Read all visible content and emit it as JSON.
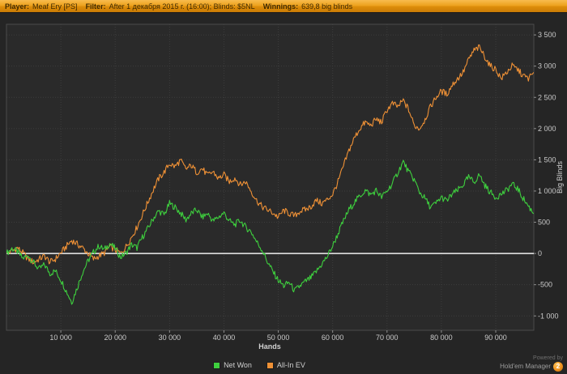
{
  "header": {
    "player_label": "Player:",
    "player_value": "Meaf Ery [PS]",
    "filter_label": "Filter:",
    "filter_value": "After 1 декабря 2015 г. (16:00); Blinds: $5NL",
    "winnings_label": "Winnings:",
    "winnings_value": "639,8 big blinds"
  },
  "chart_data": {
    "type": "line",
    "title": "",
    "xlabel": "Hands",
    "ylabel": "Big Blinds",
    "xlim": [
      0,
      97000
    ],
    "ylim": [
      -1230,
      3670
    ],
    "grid": "dotted",
    "zero_line_color": "#f0f0f0",
    "x_tick_values": [
      10000,
      20000,
      30000,
      40000,
      50000,
      60000,
      70000,
      80000,
      90000
    ],
    "x_tick_labels": [
      "10 000",
      "20 000",
      "30 000",
      "40 000",
      "50 000",
      "60 000",
      "70 000",
      "80 000",
      "90 000"
    ],
    "y_tick_values": [
      3500,
      3000,
      2500,
      2000,
      1500,
      1000,
      500,
      0,
      -500,
      -1000
    ],
    "y_tick_labels": [
      "3 500",
      "3 000",
      "2 500",
      "2 000",
      "1 500",
      "1 000",
      "500",
      "0",
      "-500",
      "-1 000"
    ],
    "x": [
      0,
      1000,
      2000,
      3000,
      4000,
      5000,
      6000,
      7000,
      8000,
      9000,
      10000,
      11000,
      12000,
      13000,
      14000,
      15000,
      16000,
      17000,
      18000,
      19000,
      20000,
      21000,
      22000,
      23000,
      24000,
      25000,
      26000,
      27000,
      28000,
      29000,
      30000,
      31000,
      32000,
      33000,
      34000,
      35000,
      36000,
      37000,
      38000,
      39000,
      40000,
      41000,
      42000,
      43000,
      44000,
      45000,
      46000,
      47000,
      48000,
      49000,
      50000,
      51000,
      52000,
      53000,
      54000,
      55000,
      56000,
      57000,
      58000,
      59000,
      60000,
      61000,
      62000,
      63000,
      64000,
      65000,
      66000,
      67000,
      68000,
      69000,
      70000,
      71000,
      72000,
      73000,
      74000,
      75000,
      76000,
      77000,
      78000,
      79000,
      80000,
      81000,
      82000,
      83000,
      84000,
      85000,
      86000,
      87000,
      88000,
      89000,
      90000,
      91000,
      92000,
      93000,
      94000,
      95000,
      96000,
      97000
    ],
    "series": [
      {
        "name": "Net Won",
        "color": "#3ecf3e",
        "values": [
          0,
          80,
          30,
          -80,
          -30,
          -150,
          -250,
          -180,
          -320,
          -280,
          -420,
          -600,
          -780,
          -550,
          -300,
          -120,
          20,
          120,
          60,
          160,
          80,
          -60,
          10,
          140,
          90,
          260,
          400,
          560,
          680,
          620,
          800,
          740,
          650,
          540,
          640,
          700,
          580,
          640,
          520,
          580,
          650,
          520,
          460,
          530,
          420,
          350,
          190,
          60,
          -130,
          -290,
          -430,
          -520,
          -460,
          -600,
          -520,
          -450,
          -390,
          -290,
          -170,
          -50,
          120,
          320,
          520,
          700,
          820,
          920,
          1010,
          940,
          1010,
          900,
          1000,
          1120,
          1300,
          1470,
          1300,
          1180,
          980,
          880,
          740,
          800,
          900,
          840,
          950,
          1010,
          1100,
          1220,
          1140,
          1260,
          1090,
          980,
          900,
          950,
          1010,
          1110,
          1040,
          890,
          760,
          640
        ]
      },
      {
        "name": "All-In EV",
        "color": "#ef9136",
        "values": [
          0,
          40,
          90,
          10,
          -90,
          -140,
          -90,
          -40,
          -140,
          -90,
          10,
          110,
          210,
          150,
          90,
          0,
          -90,
          -40,
          10,
          110,
          60,
          0,
          110,
          260,
          420,
          620,
          820,
          1020,
          1200,
          1300,
          1440,
          1390,
          1490,
          1350,
          1410,
          1300,
          1360,
          1250,
          1310,
          1200,
          1260,
          1150,
          1210,
          1100,
          1150,
          1000,
          850,
          750,
          700,
          650,
          580,
          690,
          640,
          600,
          680,
          700,
          750,
          850,
          800,
          860,
          950,
          1150,
          1400,
          1650,
          1850,
          2000,
          2100,
          2050,
          2150,
          2100,
          2300,
          2400,
          2350,
          2450,
          2300,
          2050,
          2000,
          2150,
          2350,
          2500,
          2600,
          2550,
          2700,
          2800,
          2900,
          3100,
          3250,
          3300,
          3150,
          3000,
          2950,
          2800,
          2900,
          3000,
          2950,
          2850,
          2800,
          2900
        ]
      }
    ]
  },
  "legend": [
    {
      "label": "Net Won",
      "color": "#3ecf3e"
    },
    {
      "label": "All-In EV",
      "color": "#ef9136"
    }
  ],
  "footer": {
    "powered_by": "Powered by",
    "brand": "Hold'em Manager",
    "badge": "2"
  }
}
